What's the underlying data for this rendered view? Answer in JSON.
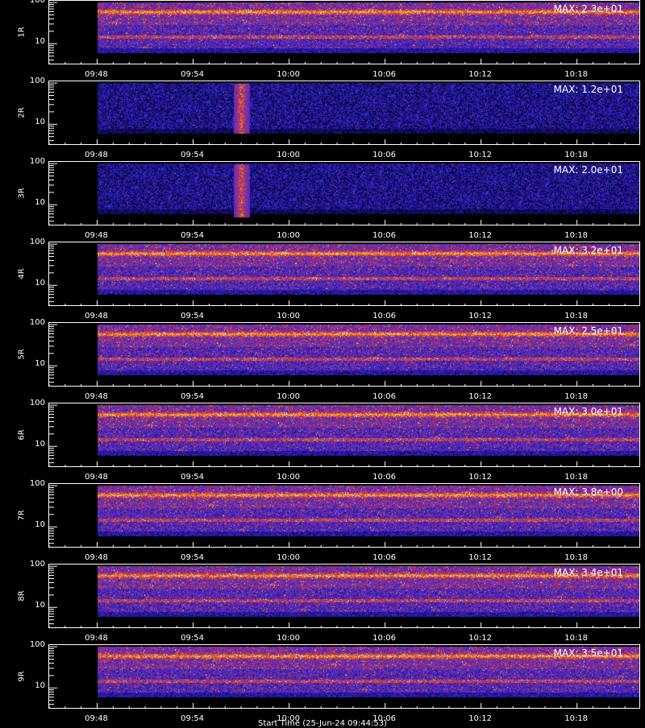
{
  "chart_data": {
    "type": "heatmap",
    "x_ticks": [
      "09:48",
      "09:54",
      "10:00",
      "10:06",
      "10:12",
      "10:18"
    ],
    "x_range": [
      "09:45",
      "10:22"
    ],
    "data_start": "09:48",
    "y_scale": "log",
    "y_ticks": [
      "100",
      "10"
    ],
    "y_range": [
      3,
      110
    ],
    "bright_bands": [
      60,
      40,
      15
    ],
    "panels": [
      {
        "label": "1R",
        "max_label": "MAX: 2.3e+01"
      },
      {
        "label": "2R",
        "max_label": "MAX: 1.2e+01",
        "burst": {
          "time": "09:57",
          "yrange": [
            6,
            100
          ]
        }
      },
      {
        "label": "3R",
        "max_label": "MAX: 2.0e+01",
        "burst": {
          "time": "09:57",
          "yrange": [
            5,
            100
          ]
        }
      },
      {
        "label": "4R",
        "max_label": "MAX: 3.2e+01"
      },
      {
        "label": "5R",
        "max_label": "MAX: 2.5e+01"
      },
      {
        "label": "6R",
        "max_label": "MAX: 3.0e+01"
      },
      {
        "label": "7R",
        "max_label": "MAX: 3.8e+00"
      },
      {
        "label": "8R",
        "max_label": "MAX: 3.4e+01"
      },
      {
        "label": "9R",
        "max_label": "MAX: 3.5e+01"
      }
    ],
    "colormap": [
      "#000000",
      "#1a0a7a",
      "#2a2ad8",
      "#7a2fb0",
      "#d0303a",
      "#f07a10",
      "#ffd040",
      "#ffffff"
    ]
  },
  "x_axis_title": "Start Time (25-Jun-24 09:44:53)"
}
